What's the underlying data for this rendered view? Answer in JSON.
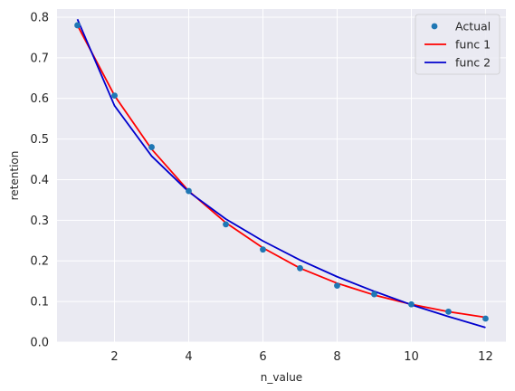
{
  "chart_data": {
    "type": "line",
    "title": "",
    "xlabel": "n_value",
    "ylabel": "retention",
    "xlim": [
      0.45,
      12.55
    ],
    "ylim": [
      0.0,
      0.82
    ],
    "xticks": [
      2,
      4,
      6,
      8,
      10,
      12
    ],
    "yticks": [
      0.0,
      0.1,
      0.2,
      0.3,
      0.4,
      0.5,
      0.6,
      0.7,
      0.8
    ],
    "xtick_labels": [
      "2",
      "4",
      "6",
      "8",
      "10",
      "12"
    ],
    "ytick_labels": [
      "0.0",
      "0.1",
      "0.2",
      "0.3",
      "0.4",
      "0.5",
      "0.6",
      "0.7",
      "0.8"
    ],
    "grid": true,
    "background": "#eaeaf2",
    "legend_position": "top-right",
    "series": [
      {
        "name": "Actual",
        "kind": "scatter",
        "color": "#1f77b4",
        "x": [
          1,
          2,
          3,
          4,
          5,
          6,
          7,
          8,
          9,
          10,
          11,
          12
        ],
        "y": [
          0.78,
          0.607,
          0.48,
          0.372,
          0.29,
          0.228,
          0.182,
          0.139,
          0.118,
          0.093,
          0.075,
          0.058
        ]
      },
      {
        "name": "func 1",
        "kind": "line",
        "color": "#ff0000",
        "x": [
          1,
          2,
          3,
          4,
          5,
          6,
          7,
          8,
          9,
          10,
          11,
          12
        ],
        "y": [
          0.78,
          0.607,
          0.475,
          0.372,
          0.294,
          0.232,
          0.182,
          0.145,
          0.116,
          0.093,
          0.075,
          0.061
        ]
      },
      {
        "name": "func 2",
        "kind": "line",
        "color": "#0000cd",
        "x": [
          1,
          2,
          3,
          4,
          5,
          6,
          7,
          8,
          9,
          10,
          11,
          12
        ],
        "y": [
          0.795,
          0.582,
          0.458,
          0.37,
          0.303,
          0.249,
          0.202,
          0.161,
          0.125,
          0.092,
          0.063,
          0.036
        ]
      }
    ]
  }
}
